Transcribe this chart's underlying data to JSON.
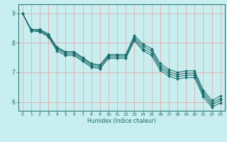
{
  "xlabel": "Humidex (Indice chaleur)",
  "xlim": [
    -0.5,
    23.5
  ],
  "ylim": [
    5.7,
    9.3
  ],
  "yticks": [
    6,
    7,
    8,
    9
  ],
  "xticks": [
    0,
    1,
    2,
    3,
    4,
    5,
    6,
    7,
    8,
    9,
    10,
    11,
    12,
    13,
    14,
    15,
    16,
    17,
    18,
    19,
    20,
    21,
    22,
    23
  ],
  "bg_color": "#c8eef0",
  "line_color": "#1a6b6a",
  "grid_color_x": "#e8a0a0",
  "grid_color_y": "#e8a0a0",
  "series": [
    [
      9.0,
      8.45,
      8.45,
      8.3,
      7.85,
      7.7,
      7.7,
      7.5,
      7.3,
      7.25,
      7.6,
      7.6,
      7.6,
      8.25,
      7.95,
      7.8,
      7.3,
      7.1,
      7.0,
      7.05,
      7.05,
      6.4,
      6.05,
      6.2
    ],
    [
      9.0,
      8.45,
      8.43,
      8.28,
      7.82,
      7.67,
      7.67,
      7.47,
      7.27,
      7.22,
      7.57,
      7.57,
      7.57,
      8.18,
      7.88,
      7.73,
      7.22,
      7.02,
      6.92,
      6.97,
      6.97,
      6.32,
      5.97,
      6.12
    ],
    [
      9.0,
      8.42,
      8.4,
      8.24,
      7.78,
      7.62,
      7.62,
      7.42,
      7.22,
      7.17,
      7.52,
      7.52,
      7.52,
      8.12,
      7.8,
      7.65,
      7.15,
      6.95,
      6.85,
      6.9,
      6.9,
      6.25,
      5.9,
      6.05
    ],
    [
      9.0,
      8.4,
      8.37,
      8.2,
      7.72,
      7.57,
      7.57,
      7.37,
      7.17,
      7.12,
      7.47,
      7.47,
      7.47,
      8.07,
      7.73,
      7.57,
      7.07,
      6.87,
      6.77,
      6.82,
      6.82,
      6.17,
      5.82,
      5.97
    ]
  ]
}
